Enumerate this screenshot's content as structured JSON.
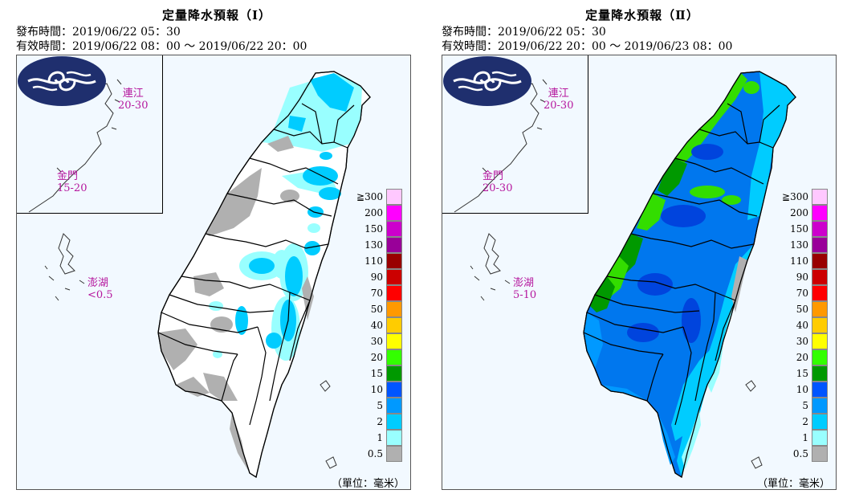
{
  "panels": [
    {
      "title": "定量降水預報（Ⅰ）",
      "issue_time": "發布時間：2019/06/22 05：30",
      "valid_time": "有效時間：2019/06/22 08：00 ～ 2019/06/22 20：00",
      "islands": [
        {
          "name": "連江",
          "range": "20-30"
        },
        {
          "name": "金門",
          "range": "15-20"
        },
        {
          "name": "澎湖",
          "range": "<0.5"
        }
      ]
    },
    {
      "title": "定量降水預報（Ⅱ）",
      "issue_time": "發布時間：2019/06/22 05：30",
      "valid_time": "有效時間：2019/06/22 20：00 ～ 2019/06/23 08：00",
      "islands": [
        {
          "name": "連江",
          "range": "20-30"
        },
        {
          "name": "金門",
          "range": "20-30"
        },
        {
          "name": "澎湖",
          "range": "5-10"
        }
      ]
    }
  ],
  "legend": {
    "labels": [
      "≧300",
      "200",
      "150",
      "130",
      "110",
      "90",
      "70",
      "50",
      "40",
      "30",
      "20",
      "15",
      "10",
      "5",
      "2",
      "1",
      "0.5"
    ],
    "colors": [
      "#ffc8ff",
      "#ff00ff",
      "#cc00cc",
      "#990099",
      "#990000",
      "#cc0000",
      "#ff0000",
      "#ff9900",
      "#ffcc00",
      "#ffff00",
      "#33ff00",
      "#009900",
      "#0055ff",
      "#0099ff",
      "#00ccff",
      "#99ffff",
      "#b0b0b0"
    ],
    "unit": "（單位：毫米）"
  },
  "logo_icon": "cwb-cloud-logo-icon"
}
